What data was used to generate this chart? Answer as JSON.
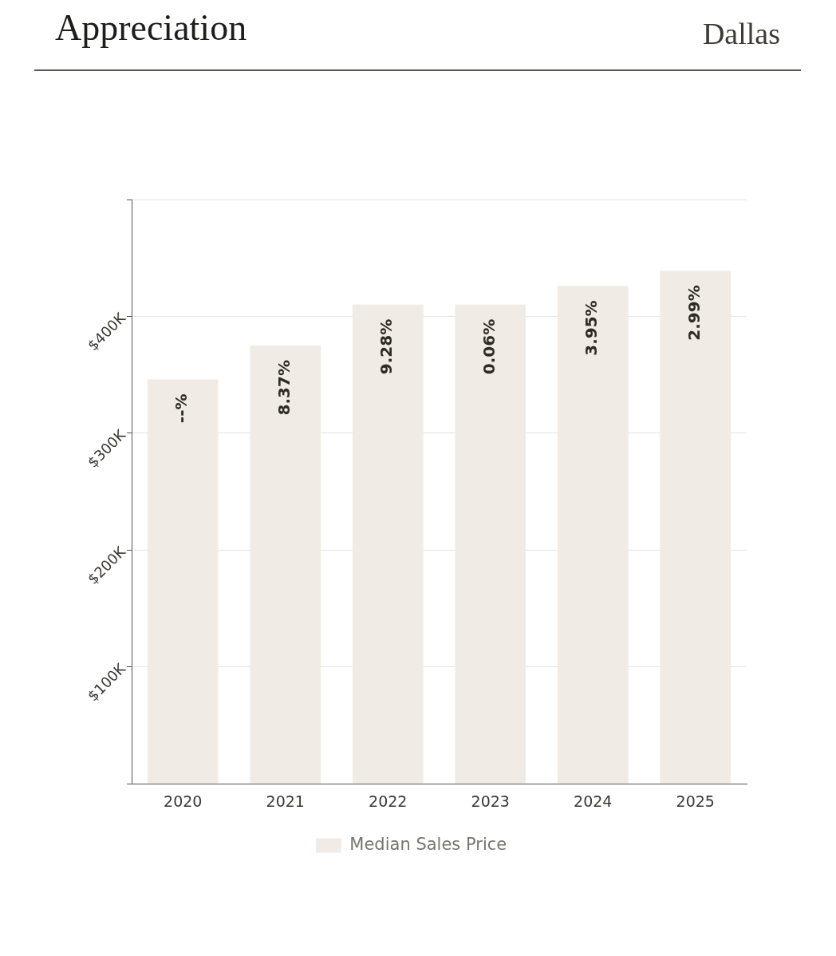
{
  "chart_data": {
    "type": "bar",
    "title": "Appreciation",
    "subtitle": "Dallas",
    "categories": [
      "2020",
      "2021",
      "2022",
      "2023",
      "2024",
      "2025"
    ],
    "series": [
      {
        "name": "Median Sales Price",
        "color": "#f0ece5",
        "values": [
          346000,
          375000,
          410000,
          410000,
          426000,
          439000
        ]
      }
    ],
    "annotations": [
      {
        "text": "--%",
        "x": "2020",
        "y": 346000
      },
      {
        "text": "8.37%",
        "x": "2021",
        "y": 375000
      },
      {
        "text": "9.28%",
        "x": "2022",
        "y": 410000
      },
      {
        "text": "0.06%",
        "x": "2023",
        "y": 410000
      },
      {
        "text": "3.95%",
        "x": "2024",
        "y": 426000
      },
      {
        "text": "2.99%",
        "x": "2025",
        "y": 439000
      }
    ],
    "ylim": [
      0,
      500000
    ],
    "yticks": [
      {
        "value": 0,
        "label": null
      },
      {
        "value": 100000,
        "label": "$100K"
      },
      {
        "value": 200000,
        "label": "$200K"
      },
      {
        "value": 300000,
        "label": "$300K"
      },
      {
        "value": 400000,
        "label": "$400K"
      },
      {
        "value": 500000,
        "label": null
      }
    ],
    "grid": "y",
    "legend": "bottom"
  }
}
